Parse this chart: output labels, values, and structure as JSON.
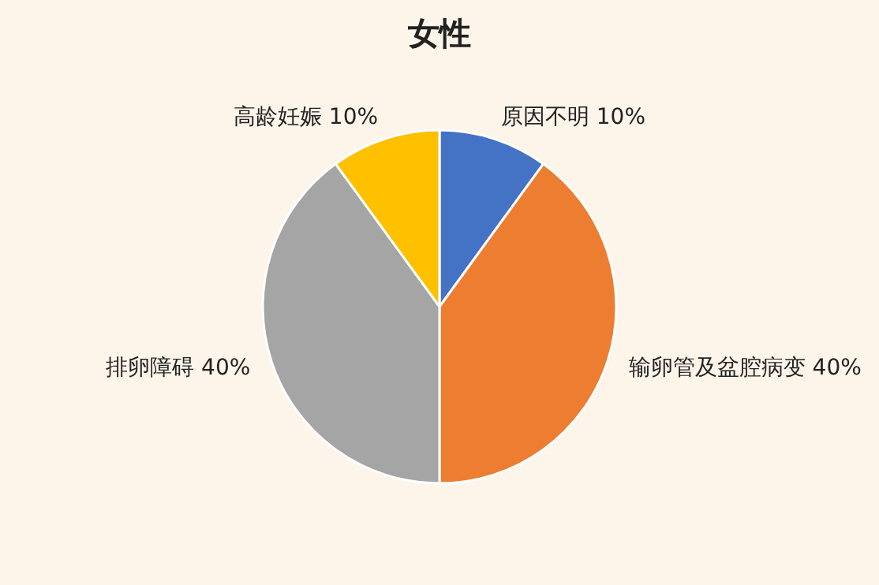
{
  "chart_data": {
    "type": "pie",
    "title": "女性",
    "categories": [
      "原因不明",
      "输卵管及盆腔病变",
      "排卵障碍",
      "高龄妊娠"
    ],
    "values": [
      10,
      40,
      40,
      10
    ],
    "value_labels": [
      "10%",
      "40%",
      "40%",
      "10%"
    ],
    "colors": [
      "#4472c4",
      "#ed7d31",
      "#a5a5a5",
      "#ffc000"
    ],
    "legend": false
  }
}
